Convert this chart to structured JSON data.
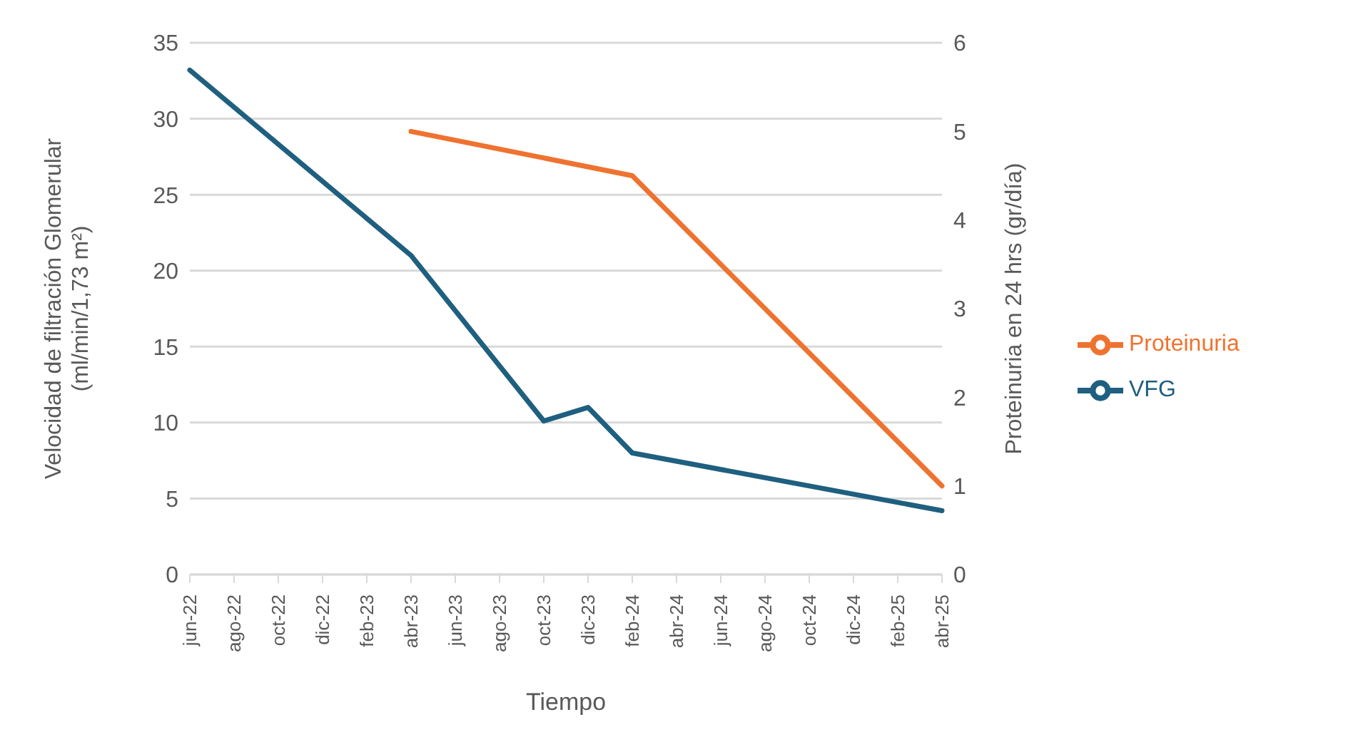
{
  "chart_data": {
    "type": "line",
    "xlabel": "Tiempo",
    "ylabel": "Velocidad de filtración Glomerular (ml/min/1,73 m²)",
    "y2label": "Proteinuria en 24 hrs (gr/día)",
    "categories": [
      "jun-22",
      "ago-22",
      "oct-22",
      "dic-22",
      "feb-23",
      "abr-23",
      "jun-23",
      "ago-23",
      "oct-23",
      "dic-23",
      "feb-24",
      "abr-24",
      "jun-24",
      "ago-24",
      "oct-24",
      "dic-24",
      "feb-25",
      "abr-25"
    ],
    "series": [
      {
        "name": "VFG",
        "color": "#1f5f7f",
        "values": [
          33.2,
          null,
          null,
          null,
          null,
          21,
          null,
          null,
          10.1,
          11,
          8,
          null,
          null,
          null,
          null,
          null,
          null,
          4.2
        ]
      },
      {
        "name": "Proteinuria",
        "color": "#ee7330",
        "axis": "y2",
        "values": [
          null,
          null,
          null,
          null,
          null,
          5.0,
          null,
          null,
          null,
          null,
          4.5,
          null,
          null,
          null,
          null,
          null,
          null,
          1.0
        ]
      }
    ],
    "ylim": [
      0,
      35
    ],
    "yticks": [
      0,
      5,
      10,
      15,
      20,
      25,
      30,
      35
    ],
    "y2lim": [
      0,
      6
    ],
    "y2ticks": [
      0,
      1,
      2,
      3,
      4,
      5,
      6
    ],
    "grid": "y",
    "legend": "right",
    "marker": "none",
    "line_style": "solid"
  }
}
